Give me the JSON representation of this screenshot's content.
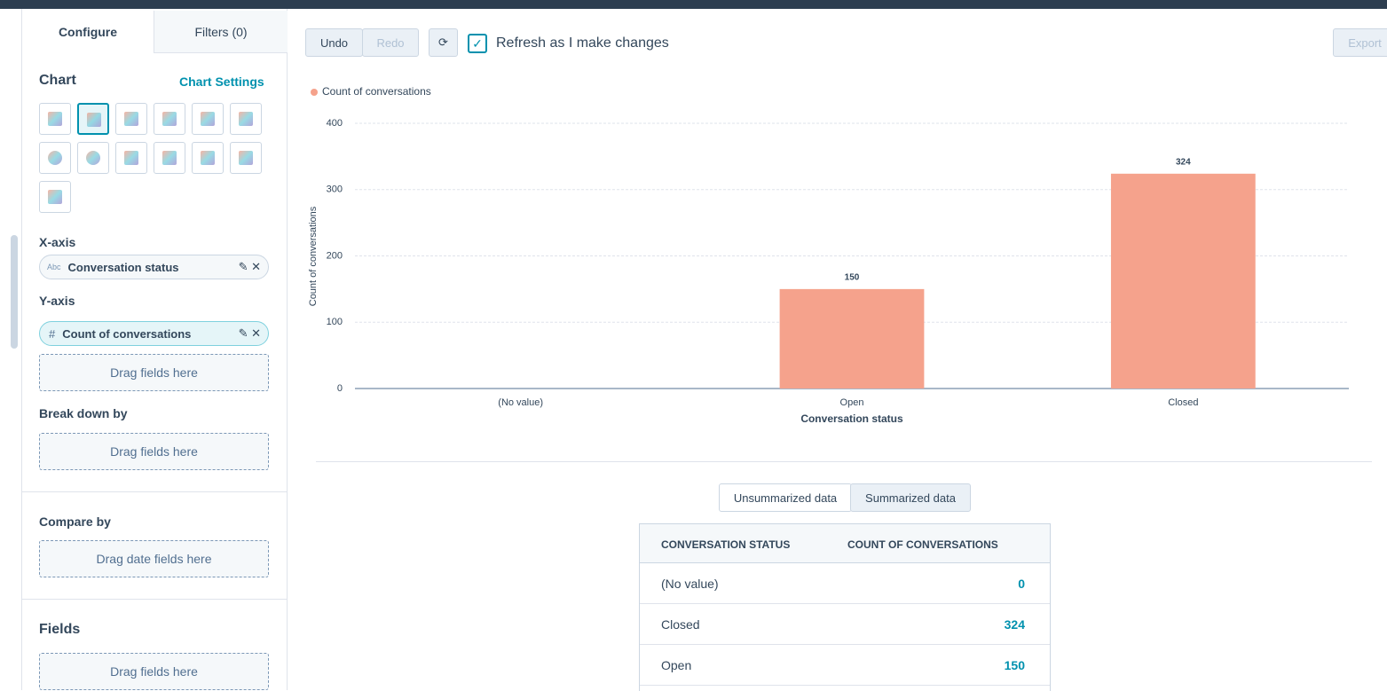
{
  "tabs": [
    "Configure",
    "Filters (0)"
  ],
  "toolbar": {
    "undo": "Undo",
    "redo": "Redo",
    "refresh_label": "Refresh as I make changes",
    "export": "Export"
  },
  "sidebar": {
    "chart_heading": "Chart",
    "chart_settings": "Chart Settings",
    "x_axis": {
      "label": "X-axis",
      "field_type": "Abc",
      "field": "Conversation status"
    },
    "y_axis": {
      "label": "Y-axis",
      "field_type": "#",
      "field": "Count of conversations"
    },
    "drag_y": "Drag fields here",
    "break_down": "Break down by",
    "drag_break": "Drag fields here",
    "compare": "Compare by",
    "drag_compare": "Drag date fields here",
    "fields": "Fields",
    "drag_fields": "Drag fields here"
  },
  "chart_data": {
    "type": "bar",
    "categories": [
      "(No value)",
      "Open",
      "Closed"
    ],
    "series": [
      {
        "name": "Count of conversations",
        "color": "#f5a28c",
        "values": [
          0,
          150,
          324
        ]
      }
    ],
    "xlabel": "Conversation status",
    "ylabel": "Count of conversations",
    "ylim": [
      0,
      400
    ],
    "yticks": [
      0,
      100,
      200,
      300,
      400
    ],
    "grid": true
  },
  "table": {
    "toggle": [
      "Unsummarized data",
      "Summarized data"
    ],
    "headers": [
      "CONVERSATION STATUS",
      "COUNT OF CONVERSATIONS"
    ],
    "rows": [
      [
        "(No value)",
        0
      ],
      [
        "Closed",
        324
      ],
      [
        "Open",
        150
      ]
    ]
  }
}
